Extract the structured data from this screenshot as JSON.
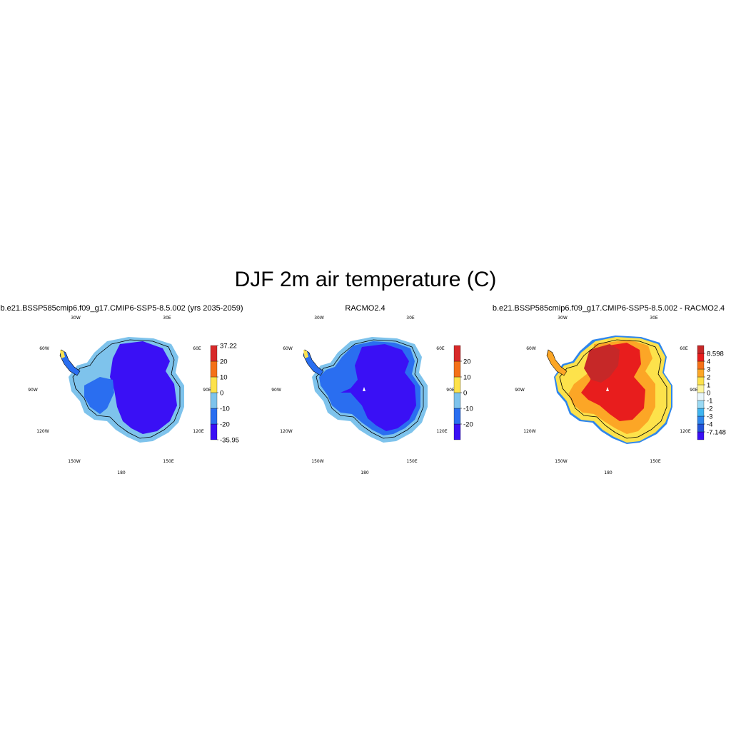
{
  "figure": {
    "title": "DJF 2m air temperature (C)"
  },
  "map_labels": {
    "lon_30w": "30W",
    "lon_30e": "30E",
    "lon_60w": "60W",
    "lon_60e": "60E",
    "lon_90w": "90W",
    "lon_90e": "90E",
    "lon_120w": "120W",
    "lon_120e": "120E",
    "lon_150w": "150W",
    "lon_150e": "150E",
    "lon_180": "180"
  },
  "panels": [
    {
      "title": "b.e21.BSSP585cmip6.f09_g17.CMIP6-SSP5-8.5.002 (yrs 2035-2059)",
      "colorbar": {
        "colors": [
          "#3a10f5",
          "#2a6ef0",
          "#7ec3ec",
          "#fde24b",
          "#f47118",
          "#d82a2a"
        ],
        "labels": [
          "-35.95",
          "-20",
          "-10",
          "0",
          "10",
          "20",
          "37.22"
        ]
      }
    },
    {
      "title": "RACMO2.4",
      "colorbar": {
        "colors": [
          "#3a10f5",
          "#2a6ef0",
          "#7ec3ec",
          "#fde24b",
          "#f47118",
          "#d82a2a"
        ],
        "labels": [
          "-20",
          "-10",
          "0",
          "10",
          "20"
        ]
      }
    },
    {
      "title": "b.e21.BSSP585cmip6.f09_g17.CMIP6-SSP5-8.5.002 - RACMO2.4",
      "colorbar": {
        "colors": [
          "#3a10f5",
          "#2353d8",
          "#2f86ec",
          "#3fb4f0",
          "#9ad9f3",
          "#e9f6fb",
          "#fef69e",
          "#fde24b",
          "#fca626",
          "#f47118",
          "#e81d1d",
          "#c62828"
        ],
        "labels": [
          "-7.148",
          "-4",
          "-3",
          "-2",
          "-1",
          "0",
          "1",
          "2",
          "3",
          "4",
          "8.598"
        ]
      }
    }
  ]
}
